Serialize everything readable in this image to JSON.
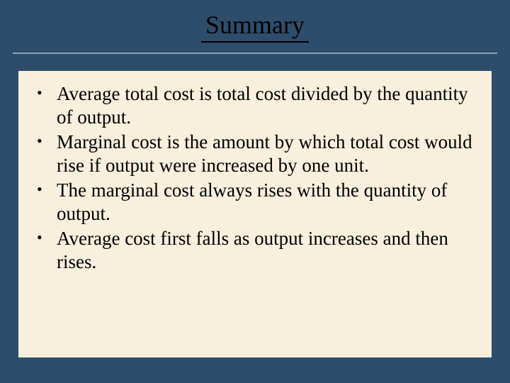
{
  "slide": {
    "title": "Summary",
    "bullets": [
      "Average total cost is total cost divided by the quantity of output.",
      "Marginal cost is the amount by which total cost would rise if output were increased by one unit.",
      "The marginal cost always rises with the quantity of output.",
      "Average cost first falls as output increases and then rises."
    ]
  },
  "style": {
    "background_color": "#2e4d6b",
    "content_bg_color": "#f8efdc",
    "title_fontsize": 36,
    "body_fontsize": 27,
    "underline_color": "#8fa3b8",
    "text_color": "#000000",
    "font_family": "Times New Roman"
  }
}
